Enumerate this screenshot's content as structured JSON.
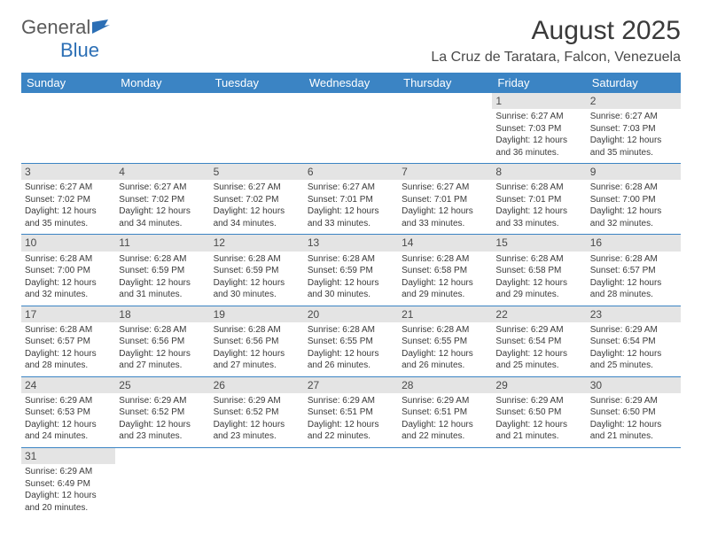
{
  "logo": {
    "general": "General",
    "blue": "Blue"
  },
  "title": "August 2025",
  "location": "La Cruz de Taratara, Falcon, Venezuela",
  "colors": {
    "header_bg": "#3b84c4",
    "header_text": "#ffffff",
    "daynum_bg": "#e4e4e4",
    "line": "#3b84c4",
    "text": "#3a3a3a"
  },
  "dow": [
    "Sunday",
    "Monday",
    "Tuesday",
    "Wednesday",
    "Thursday",
    "Friday",
    "Saturday"
  ],
  "weeks": [
    [
      null,
      null,
      null,
      null,
      null,
      {
        "d": "1",
        "sr": "Sunrise: 6:27 AM",
        "ss": "Sunset: 7:03 PM",
        "dl1": "Daylight: 12 hours",
        "dl2": "and 36 minutes."
      },
      {
        "d": "2",
        "sr": "Sunrise: 6:27 AM",
        "ss": "Sunset: 7:03 PM",
        "dl1": "Daylight: 12 hours",
        "dl2": "and 35 minutes."
      }
    ],
    [
      {
        "d": "3",
        "sr": "Sunrise: 6:27 AM",
        "ss": "Sunset: 7:02 PM",
        "dl1": "Daylight: 12 hours",
        "dl2": "and 35 minutes."
      },
      {
        "d": "4",
        "sr": "Sunrise: 6:27 AM",
        "ss": "Sunset: 7:02 PM",
        "dl1": "Daylight: 12 hours",
        "dl2": "and 34 minutes."
      },
      {
        "d": "5",
        "sr": "Sunrise: 6:27 AM",
        "ss": "Sunset: 7:02 PM",
        "dl1": "Daylight: 12 hours",
        "dl2": "and 34 minutes."
      },
      {
        "d": "6",
        "sr": "Sunrise: 6:27 AM",
        "ss": "Sunset: 7:01 PM",
        "dl1": "Daylight: 12 hours",
        "dl2": "and 33 minutes."
      },
      {
        "d": "7",
        "sr": "Sunrise: 6:27 AM",
        "ss": "Sunset: 7:01 PM",
        "dl1": "Daylight: 12 hours",
        "dl2": "and 33 minutes."
      },
      {
        "d": "8",
        "sr": "Sunrise: 6:28 AM",
        "ss": "Sunset: 7:01 PM",
        "dl1": "Daylight: 12 hours",
        "dl2": "and 33 minutes."
      },
      {
        "d": "9",
        "sr": "Sunrise: 6:28 AM",
        "ss": "Sunset: 7:00 PM",
        "dl1": "Daylight: 12 hours",
        "dl2": "and 32 minutes."
      }
    ],
    [
      {
        "d": "10",
        "sr": "Sunrise: 6:28 AM",
        "ss": "Sunset: 7:00 PM",
        "dl1": "Daylight: 12 hours",
        "dl2": "and 32 minutes."
      },
      {
        "d": "11",
        "sr": "Sunrise: 6:28 AM",
        "ss": "Sunset: 6:59 PM",
        "dl1": "Daylight: 12 hours",
        "dl2": "and 31 minutes."
      },
      {
        "d": "12",
        "sr": "Sunrise: 6:28 AM",
        "ss": "Sunset: 6:59 PM",
        "dl1": "Daylight: 12 hours",
        "dl2": "and 30 minutes."
      },
      {
        "d": "13",
        "sr": "Sunrise: 6:28 AM",
        "ss": "Sunset: 6:59 PM",
        "dl1": "Daylight: 12 hours",
        "dl2": "and 30 minutes."
      },
      {
        "d": "14",
        "sr": "Sunrise: 6:28 AM",
        "ss": "Sunset: 6:58 PM",
        "dl1": "Daylight: 12 hours",
        "dl2": "and 29 minutes."
      },
      {
        "d": "15",
        "sr": "Sunrise: 6:28 AM",
        "ss": "Sunset: 6:58 PM",
        "dl1": "Daylight: 12 hours",
        "dl2": "and 29 minutes."
      },
      {
        "d": "16",
        "sr": "Sunrise: 6:28 AM",
        "ss": "Sunset: 6:57 PM",
        "dl1": "Daylight: 12 hours",
        "dl2": "and 28 minutes."
      }
    ],
    [
      {
        "d": "17",
        "sr": "Sunrise: 6:28 AM",
        "ss": "Sunset: 6:57 PM",
        "dl1": "Daylight: 12 hours",
        "dl2": "and 28 minutes."
      },
      {
        "d": "18",
        "sr": "Sunrise: 6:28 AM",
        "ss": "Sunset: 6:56 PM",
        "dl1": "Daylight: 12 hours",
        "dl2": "and 27 minutes."
      },
      {
        "d": "19",
        "sr": "Sunrise: 6:28 AM",
        "ss": "Sunset: 6:56 PM",
        "dl1": "Daylight: 12 hours",
        "dl2": "and 27 minutes."
      },
      {
        "d": "20",
        "sr": "Sunrise: 6:28 AM",
        "ss": "Sunset: 6:55 PM",
        "dl1": "Daylight: 12 hours",
        "dl2": "and 26 minutes."
      },
      {
        "d": "21",
        "sr": "Sunrise: 6:28 AM",
        "ss": "Sunset: 6:55 PM",
        "dl1": "Daylight: 12 hours",
        "dl2": "and 26 minutes."
      },
      {
        "d": "22",
        "sr": "Sunrise: 6:29 AM",
        "ss": "Sunset: 6:54 PM",
        "dl1": "Daylight: 12 hours",
        "dl2": "and 25 minutes."
      },
      {
        "d": "23",
        "sr": "Sunrise: 6:29 AM",
        "ss": "Sunset: 6:54 PM",
        "dl1": "Daylight: 12 hours",
        "dl2": "and 25 minutes."
      }
    ],
    [
      {
        "d": "24",
        "sr": "Sunrise: 6:29 AM",
        "ss": "Sunset: 6:53 PM",
        "dl1": "Daylight: 12 hours",
        "dl2": "and 24 minutes."
      },
      {
        "d": "25",
        "sr": "Sunrise: 6:29 AM",
        "ss": "Sunset: 6:52 PM",
        "dl1": "Daylight: 12 hours",
        "dl2": "and 23 minutes."
      },
      {
        "d": "26",
        "sr": "Sunrise: 6:29 AM",
        "ss": "Sunset: 6:52 PM",
        "dl1": "Daylight: 12 hours",
        "dl2": "and 23 minutes."
      },
      {
        "d": "27",
        "sr": "Sunrise: 6:29 AM",
        "ss": "Sunset: 6:51 PM",
        "dl1": "Daylight: 12 hours",
        "dl2": "and 22 minutes."
      },
      {
        "d": "28",
        "sr": "Sunrise: 6:29 AM",
        "ss": "Sunset: 6:51 PM",
        "dl1": "Daylight: 12 hours",
        "dl2": "and 22 minutes."
      },
      {
        "d": "29",
        "sr": "Sunrise: 6:29 AM",
        "ss": "Sunset: 6:50 PM",
        "dl1": "Daylight: 12 hours",
        "dl2": "and 21 minutes."
      },
      {
        "d": "30",
        "sr": "Sunrise: 6:29 AM",
        "ss": "Sunset: 6:50 PM",
        "dl1": "Daylight: 12 hours",
        "dl2": "and 21 minutes."
      }
    ],
    [
      {
        "d": "31",
        "sr": "Sunrise: 6:29 AM",
        "ss": "Sunset: 6:49 PM",
        "dl1": "Daylight: 12 hours",
        "dl2": "and 20 minutes."
      },
      null,
      null,
      null,
      null,
      null,
      null
    ]
  ]
}
